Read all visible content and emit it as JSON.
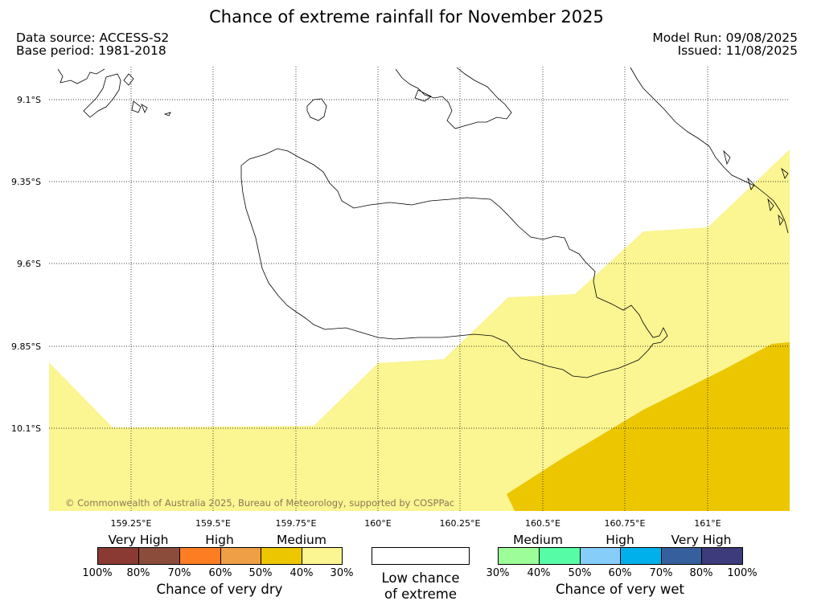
{
  "title": "Chance of extreme rainfall for November 2025",
  "meta": {
    "data_source": "Data source: ACCESS-S2",
    "base_period": "Base period: 1981-2018",
    "model_run": "Model Run: 09/08/2025",
    "issued": "Issued: 11/08/2025"
  },
  "map": {
    "lon_labels": [
      "159.25°E",
      "159.5°E",
      "159.75°E",
      "160°E",
      "160.25°E",
      "160.5°E",
      "160.75°E",
      "161°E"
    ],
    "lat_labels": [
      "9.1°S",
      "9.35°S",
      "9.6°S",
      "9.85°S",
      "10.1°S"
    ],
    "colors": {
      "dry_medium_30_40": "#fbf592",
      "dry_medium_40_50": "#ecc700",
      "land_outline": "#000000",
      "gridline": "#000000"
    },
    "copyright": "© Commonwealth of Australia 2025, Bureau of Meteorology, supported by COSPPac"
  },
  "legend": {
    "dry": {
      "categories": [
        "Very High",
        "High",
        "Medium"
      ],
      "ticks": [
        "100%",
        "80%",
        "70%",
        "60%",
        "50%",
        "40%",
        "30%"
      ],
      "colors": [
        "#8b3a33",
        "#8c4c3c",
        "#fd7e22",
        "#ef9f45",
        "#ecc700",
        "#fbf592"
      ],
      "title": "Chance of very dry"
    },
    "low": {
      "line1": "Low chance",
      "line2": "of extreme",
      "color": "#ffffff"
    },
    "wet": {
      "categories": [
        "Medium",
        "High",
        "Very High"
      ],
      "ticks": [
        "30%",
        "40%",
        "50%",
        "60%",
        "70%",
        "80%",
        "100%"
      ],
      "colors": [
        "#9dfd99",
        "#56fda6",
        "#87cdfa",
        "#00b0ea",
        "#355f9d",
        "#3e3b7c"
      ],
      "title": "Chance of very wet"
    }
  }
}
